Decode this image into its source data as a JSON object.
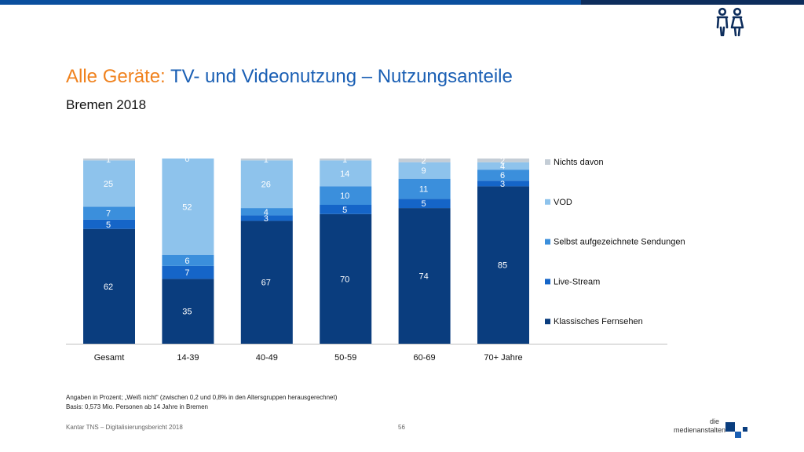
{
  "header": {
    "title_prefix": "Alle Geräte:",
    "title_main": "TV- und Videonutzung – Nutzungsanteile",
    "subtitle": "Bremen 2018"
  },
  "notes": {
    "line1": "Angaben in Prozent; „Weiß nicht“ (zwischen 0,2 und 0,8% in den Altersgruppen herausgerechnet)",
    "line2": "Basis: 0,573 Mio. Personen ab 14 Jahre in Bremen"
  },
  "footer": {
    "source": "Kantar TNS – Digitalisierungsbericht 2018",
    "page": "56",
    "logo_line1": "die",
    "logo_line2": "medienanstalten"
  },
  "icons": {
    "header_icon": "people-icon",
    "logo_icon": "medienanstalten-logo"
  },
  "colors": {
    "accent_orange": "#f0821e",
    "accent_blue": "#1a5fb4"
  },
  "chart_data": {
    "type": "bar",
    "stacked": true,
    "categories": [
      "Gesamt",
      "14-39",
      "40-49",
      "50-59",
      "60-69",
      "70+ Jahre"
    ],
    "ylim": [
      0,
      100
    ],
    "legend_position": "right",
    "series": [
      {
        "name": "Klassisches Fernsehen",
        "color": "#0a3d7e",
        "values": [
          62,
          35,
          67,
          70,
          74,
          85
        ]
      },
      {
        "name": "Live-Stream",
        "color": "#1565c8",
        "values": [
          5,
          7,
          3,
          5,
          5,
          3
        ]
      },
      {
        "name": "Selbst aufgezeichnete Sendungen",
        "color": "#3b8fdc",
        "values": [
          7,
          6,
          4,
          10,
          11,
          6
        ]
      },
      {
        "name": "VOD",
        "color": "#8ec3ec",
        "values": [
          25,
          52,
          26,
          14,
          9,
          4
        ]
      },
      {
        "name": "Nichts davon",
        "color": "#c4cdd6",
        "values": [
          1,
          0,
          1,
          1,
          2,
          2
        ]
      }
    ],
    "legend_order": [
      "Nichts davon",
      "VOD",
      "Selbst aufgezeichnete Sendungen",
      "Live-Stream",
      "Klassisches Fernsehen"
    ]
  }
}
